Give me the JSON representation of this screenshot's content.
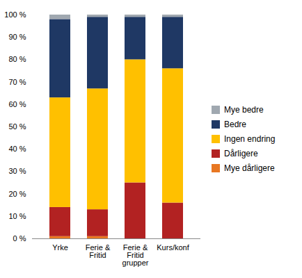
{
  "chart_data": {
    "type": "bar",
    "stacked": true,
    "categories": [
      "Yrke",
      "Ferie &\nFritid",
      "Ferie &\nFritid\ngrupper",
      "Kurs/konf"
    ],
    "series": [
      {
        "name": "Mye dårligere",
        "color": "#E87722",
        "values": [
          1,
          1,
          0,
          0
        ]
      },
      {
        "name": "Dårligere",
        "color": "#B22222",
        "values": [
          13,
          12,
          25,
          16
        ]
      },
      {
        "name": "Ingen endring",
        "color": "#FFC000",
        "values": [
          49,
          54,
          55,
          60
        ]
      },
      {
        "name": "Bedre",
        "color": "#1F3864",
        "values": [
          35,
          32,
          19,
          23
        ]
      },
      {
        "name": "Mye bedre",
        "color": "#A0A8B0",
        "values": [
          2,
          1,
          1,
          1
        ]
      }
    ],
    "ylim": [
      0,
      100
    ],
    "yticks": [
      {
        "value": 0,
        "label": "0 %"
      },
      {
        "value": 10,
        "label": "10 %"
      },
      {
        "value": 20,
        "label": "20 %"
      },
      {
        "value": 30,
        "label": "30 %"
      },
      {
        "value": 40,
        "label": "40 %"
      },
      {
        "value": 50,
        "label": "50 %"
      },
      {
        "value": 60,
        "label": "60 %"
      },
      {
        "value": 70,
        "label": "70 %"
      },
      {
        "value": 80,
        "label": "80 %"
      },
      {
        "value": 90,
        "label": "90 %"
      },
      {
        "value": 100,
        "label": "100 %"
      }
    ],
    "grid": false,
    "legend": "right"
  }
}
